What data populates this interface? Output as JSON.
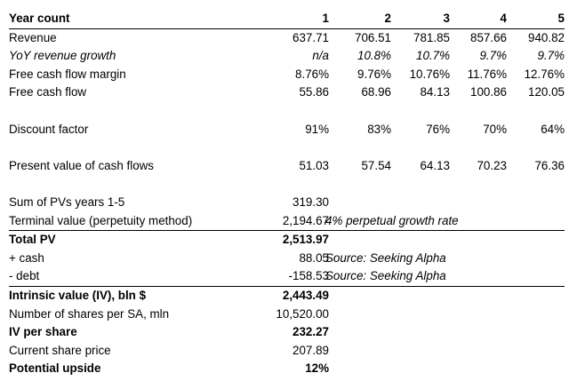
{
  "header": {
    "label": "Year count",
    "years": [
      "1",
      "2",
      "3",
      "4",
      "5"
    ]
  },
  "projections": [
    {
      "label": "Revenue",
      "values": [
        "637.71",
        "706.51",
        "781.85",
        "857.66",
        "940.82"
      ]
    },
    {
      "label": "YoY revenue growth",
      "values": [
        "n/a",
        "10.8%",
        "10.7%",
        "9.7%",
        "9.7%"
      ]
    },
    {
      "label": "Free cash flow margin",
      "values": [
        "8.76%",
        "9.76%",
        "10.76%",
        "11.76%",
        "12.76%"
      ]
    },
    {
      "label": "Free cash flow",
      "values": [
        "55.86",
        "68.96",
        "84.13",
        "100.86",
        "120.05"
      ]
    }
  ],
  "discount": {
    "label": "Discount factor",
    "values": [
      "91%",
      "83%",
      "76%",
      "70%",
      "64%"
    ]
  },
  "present_value": {
    "label": "Present value of cash flows",
    "values": [
      "51.03",
      "57.54",
      "64.13",
      "70.23",
      "76.36"
    ]
  },
  "summary": {
    "sum_pv": {
      "label": "Sum of PVs years 1-5",
      "value": "319.30"
    },
    "terminal": {
      "label": "Terminal value (perpetuity method)",
      "value": "2,194.67",
      "note": "4% perpetual growth rate"
    },
    "total_pv": {
      "label": "Total PV",
      "value": "2,513.97"
    },
    "cash": {
      "label": "+ cash",
      "value": "88.05",
      "note": "Source: Seeking Alpha"
    },
    "debt": {
      "label": "- debt",
      "value": "-158.53",
      "note": "Source: Seeking Alpha"
    },
    "intrinsic": {
      "label": "Intrinsic value (IV), bln $",
      "value": "2,443.49"
    },
    "shares": {
      "label": "Number of shares per SA, mln",
      "value": "10,520.00"
    },
    "iv_per_share": {
      "label": "IV per share",
      "value": "232.27"
    },
    "price": {
      "label": "Current share price",
      "value": "207.89"
    },
    "upside": {
      "label": "Potential upside",
      "value": "12%"
    }
  }
}
